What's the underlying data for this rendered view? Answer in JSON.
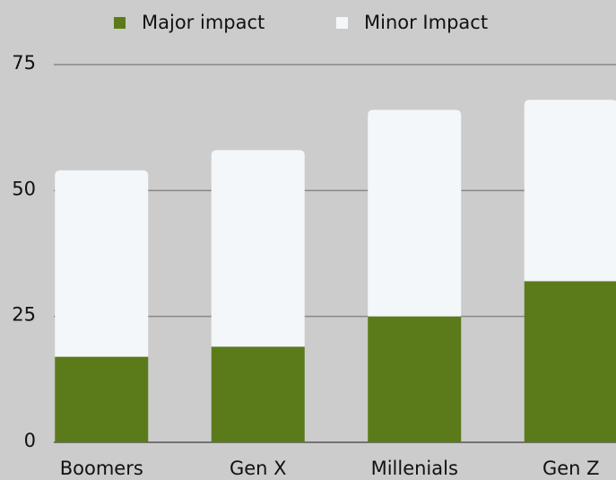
{
  "chart_data": {
    "type": "stacked-bar",
    "categories": [
      "Boomers",
      "Gen X",
      "Millenials",
      "Gen Z"
    ],
    "series": [
      {
        "name": "Major impact",
        "color": "#5b7b1a",
        "values": [
          17,
          19,
          25,
          32
        ]
      },
      {
        "name": "Minor Impact",
        "color": "#f4f7fa",
        "values": [
          37,
          39,
          41,
          36
        ]
      }
    ],
    "ylim": [
      0,
      75
    ],
    "yticks": [
      0,
      25,
      50,
      75
    ],
    "grid": true,
    "legend": "top"
  }
}
